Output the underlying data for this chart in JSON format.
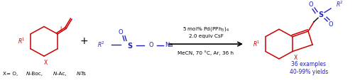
{
  "bg_color": "#ffffff",
  "red_color": "#cc0000",
  "blue_color": "#2222bb",
  "black_color": "#000000",
  "fig_width": 5.0,
  "fig_height": 1.17,
  "dpi": 100,
  "condition_line1": "5 mol% Pd(PPh$_3$)$_4$",
  "condition_line2": "2.0 equiv CsF",
  "condition_line3": "MeCN, 70 °C, Ar, 36 h",
  "yield_line1": "36 examples",
  "yield_line2": "40-99% yields"
}
